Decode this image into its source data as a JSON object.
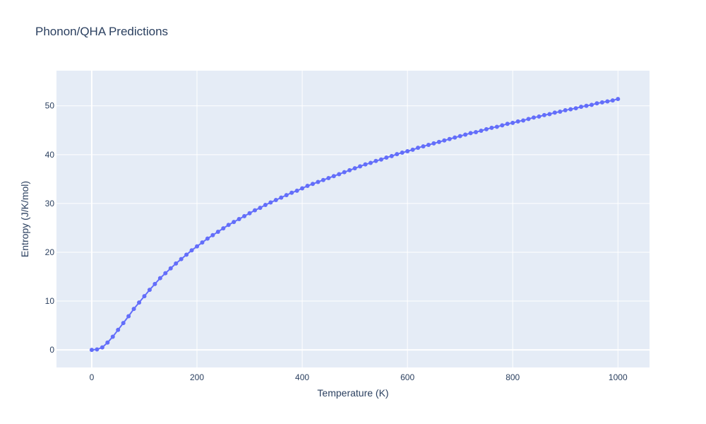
{
  "chart_data": {
    "type": "line",
    "title": "Phonon/QHA Predictions",
    "xlabel": "Temperature (K)",
    "ylabel": "Entropy (J/K/mol)",
    "xlim": [
      -67,
      1060
    ],
    "ylim": [
      -3.6,
      57.2
    ],
    "xticks": [
      0,
      200,
      400,
      600,
      800,
      1000
    ],
    "yticks": [
      0,
      10,
      20,
      30,
      40,
      50
    ],
    "grid": true,
    "legend": "none",
    "colors": {
      "plot_bg": "#e5ecf6",
      "series": "#636efa",
      "text": "#2a3f5f",
      "grid": "#ffffff"
    },
    "series": [
      {
        "mode": "lines+markers",
        "x": [
          0,
          10,
          20,
          30,
          40,
          50,
          60,
          70,
          80,
          90,
          100,
          110,
          120,
          130,
          140,
          150,
          160,
          170,
          180,
          190,
          200,
          210,
          220,
          230,
          240,
          250,
          260,
          270,
          280,
          290,
          300,
          310,
          320,
          330,
          340,
          350,
          360,
          370,
          380,
          390,
          400,
          410,
          420,
          430,
          440,
          450,
          460,
          470,
          480,
          490,
          500,
          510,
          520,
          530,
          540,
          550,
          560,
          570,
          580,
          590,
          600,
          610,
          620,
          630,
          640,
          650,
          660,
          670,
          680,
          690,
          700,
          710,
          720,
          730,
          740,
          750,
          760,
          770,
          780,
          790,
          800,
          810,
          820,
          830,
          840,
          850,
          860,
          870,
          880,
          890,
          900,
          910,
          920,
          930,
          940,
          950,
          960,
          970,
          980,
          990,
          1000
        ],
        "y": [
          0,
          0.1,
          0.5,
          1.5,
          2.7,
          4.1,
          5.5,
          6.9,
          8.4,
          9.7,
          11.0,
          12.3,
          13.5,
          14.7,
          15.7,
          16.7,
          17.7,
          18.6,
          19.5,
          20.4,
          21.2,
          22.0,
          22.8,
          23.5,
          24.2,
          24.9,
          25.6,
          26.2,
          26.8,
          27.4,
          28.0,
          28.6,
          29.1,
          29.7,
          30.2,
          30.7,
          31.2,
          31.7,
          32.2,
          32.6,
          33.1,
          33.6,
          34.0,
          34.4,
          34.8,
          35.2,
          35.6,
          36.0,
          36.4,
          36.8,
          37.2,
          37.6,
          38.0,
          38.3,
          38.7,
          39.0,
          39.4,
          39.7,
          40.1,
          40.4,
          40.7,
          41.0,
          41.4,
          41.7,
          42.0,
          42.3,
          42.6,
          42.9,
          43.2,
          43.5,
          43.8,
          44.1,
          44.4,
          44.6,
          44.9,
          45.2,
          45.5,
          45.7,
          46.0,
          46.3,
          46.5,
          46.8,
          47.0,
          47.3,
          47.6,
          47.8,
          48.1,
          48.3,
          48.6,
          48.8,
          49.1,
          49.3,
          49.5,
          49.8,
          50.0,
          50.2,
          50.5,
          50.7,
          50.9,
          51.1,
          51.4
        ]
      }
    ]
  }
}
